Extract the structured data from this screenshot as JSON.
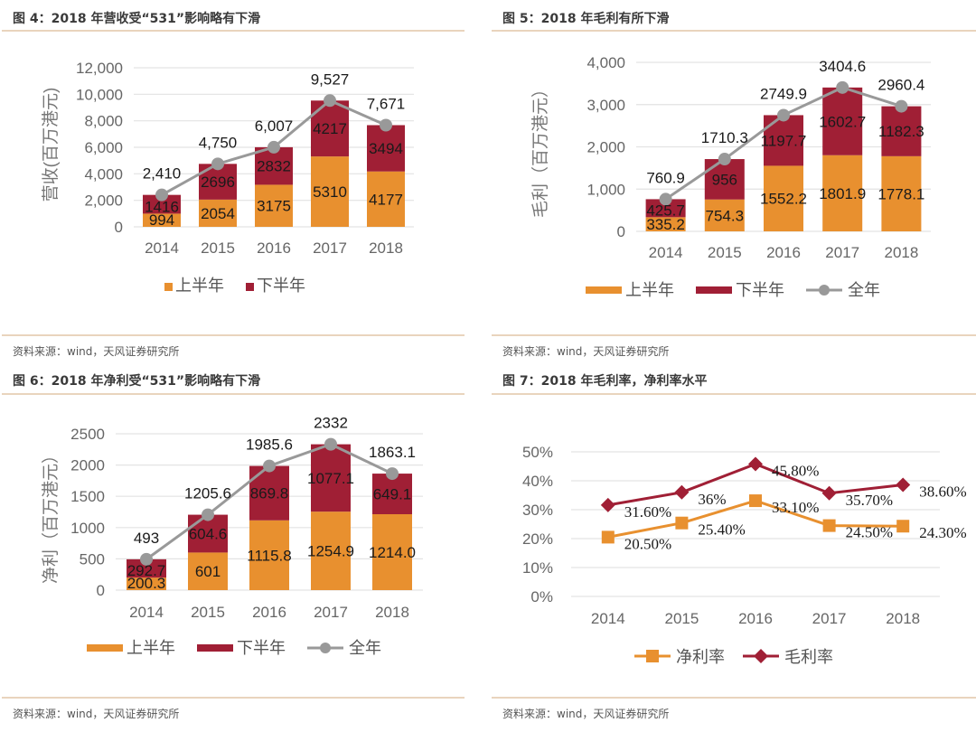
{
  "colors": {
    "first_half": "#E8902F",
    "second_half": "#A01F35",
    "full_year": "#999999",
    "net_margin": "#E8902F",
    "gross_margin": "#A01F35"
  },
  "panels": [
    {
      "title": "图 4：2018 年营收受“531”影响略有下滑",
      "source": "资料来源：wind，天风证券研究所"
    },
    {
      "title": "图 5：2018 年毛利有所下滑",
      "source": "资料来源：wind，天风证券研究所"
    },
    {
      "title": "图 6：2018 年净利受“531”影响略有下滑",
      "source": "资料来源：wind，天风证券研究所"
    },
    {
      "title": "图 7：2018 年毛利率，净利率水平",
      "source": "资料来源：wind，天风证券研究所"
    }
  ],
  "chart_data": [
    {
      "type": "bar",
      "stacked": true,
      "title": "图 4：2018 年营收受“531”影响略有下滑",
      "xlabel": "",
      "ylabel": "营收(百万港元)",
      "categories": [
        "2014",
        "2015",
        "2016",
        "2017",
        "2018"
      ],
      "ylim": [
        0,
        12000
      ],
      "yticks": [
        0,
        2000,
        4000,
        6000,
        8000,
        10000,
        12000
      ],
      "ytick_labels": [
        "0",
        "2,000",
        "4,000",
        "6,000",
        "8,000",
        "10,000",
        "12,000"
      ],
      "grid": true,
      "legend_position": "bottom",
      "series": [
        {
          "name": "上半年",
          "values": [
            994,
            2054,
            3175,
            5310,
            4177
          ],
          "labels": [
            "994",
            "2054",
            "3175",
            "5310",
            "4177"
          ]
        },
        {
          "name": "下半年",
          "values": [
            1416,
            2696,
            2832,
            4217,
            3494
          ],
          "labels": [
            "1416",
            "2696",
            "2832",
            "4217",
            "3494"
          ]
        },
        {
          "name": "全年",
          "type": "line",
          "values": [
            2410,
            4750,
            6007,
            9527,
            7671
          ],
          "labels": [
            "2,410",
            "4,750",
            "6,007",
            "9,527",
            "7,671"
          ],
          "in_legend": false
        }
      ]
    },
    {
      "type": "bar",
      "stacked": true,
      "title": "图 5：2018 年毛利有所下滑",
      "xlabel": "",
      "ylabel": "毛利（百万港元）",
      "categories": [
        "2014",
        "2015",
        "2016",
        "2017",
        "2018"
      ],
      "ylim": [
        0,
        4000
      ],
      "yticks": [
        0,
        1000,
        2000,
        3000,
        4000
      ],
      "ytick_labels": [
        "0",
        "1,000",
        "2,000",
        "3,000",
        "4,000"
      ],
      "grid": true,
      "legend_position": "bottom",
      "series": [
        {
          "name": "上半年",
          "values": [
            335.2,
            754.3,
            1552.2,
            1801.9,
            1778.1
          ],
          "labels": [
            "335.2",
            "754.3",
            "1552.2",
            "1801.9",
            "1778.1"
          ]
        },
        {
          "name": "下半年",
          "values": [
            425.7,
            956,
            1197.7,
            1602.7,
            1182.3
          ],
          "labels": [
            "425.7",
            "956",
            "1197.7",
            "1602.7",
            "1182.3"
          ]
        },
        {
          "name": "全年",
          "type": "line",
          "values": [
            760.9,
            1710.3,
            2749.9,
            3404.6,
            2960.4
          ],
          "labels": [
            "760.9",
            "1710.3",
            "2749.9",
            "3404.6",
            "2960.4"
          ],
          "in_legend": true
        }
      ]
    },
    {
      "type": "bar",
      "stacked": true,
      "title": "图 6：2018 年净利受“531”影响略有下滑",
      "xlabel": "",
      "ylabel": "净利（百万港元）",
      "categories": [
        "2014",
        "2015",
        "2016",
        "2017",
        "2018"
      ],
      "ylim": [
        0,
        2500
      ],
      "yticks": [
        0,
        500,
        1000,
        1500,
        2000,
        2500
      ],
      "ytick_labels": [
        "0",
        "500",
        "1000",
        "1500",
        "2000",
        "2500"
      ],
      "grid": true,
      "legend_position": "bottom",
      "series": [
        {
          "name": "上半年",
          "values": [
            200.3,
            601,
            1115.8,
            1254.9,
            1214.0
          ],
          "labels": [
            "200.3",
            "601",
            "1115.8",
            "1254.9",
            "1214.0"
          ]
        },
        {
          "name": "下半年",
          "values": [
            292.7,
            604.6,
            869.8,
            1077.1,
            649.1
          ],
          "labels": [
            "292.7",
            "604.6",
            "869.8",
            "1077.1",
            "649.1"
          ]
        },
        {
          "name": "全年",
          "type": "line",
          "values": [
            493,
            1205.6,
            1985.6,
            2332,
            1863.1
          ],
          "labels": [
            "493",
            "1205.6",
            "1985.6",
            "2332",
            "1863.1"
          ],
          "in_legend": true
        }
      ]
    },
    {
      "type": "line",
      "title": "图 7：2018 年毛利率，净利率水平",
      "xlabel": "",
      "ylabel": "",
      "categories": [
        "2014",
        "2015",
        "2016",
        "2017",
        "2018"
      ],
      "ylim": [
        0,
        0.5
      ],
      "yticks": [
        0,
        0.1,
        0.2,
        0.3,
        0.4,
        0.5
      ],
      "ytick_labels": [
        "0%",
        "10%",
        "20%",
        "30%",
        "40%",
        "50%"
      ],
      "grid": true,
      "legend_position": "bottom",
      "series": [
        {
          "name": "净利率",
          "marker": "square",
          "values": [
            0.205,
            0.254,
            0.331,
            0.245,
            0.243
          ],
          "labels": [
            "20.50%",
            "25.40%",
            "33.10%",
            "24.50%",
            "24.30%"
          ]
        },
        {
          "name": "毛利率",
          "marker": "diamond",
          "values": [
            0.316,
            0.36,
            0.458,
            0.357,
            0.386
          ],
          "labels": [
            "31.60%",
            "36%",
            "45.80%",
            "35.70%",
            "38.60%"
          ]
        }
      ]
    }
  ]
}
